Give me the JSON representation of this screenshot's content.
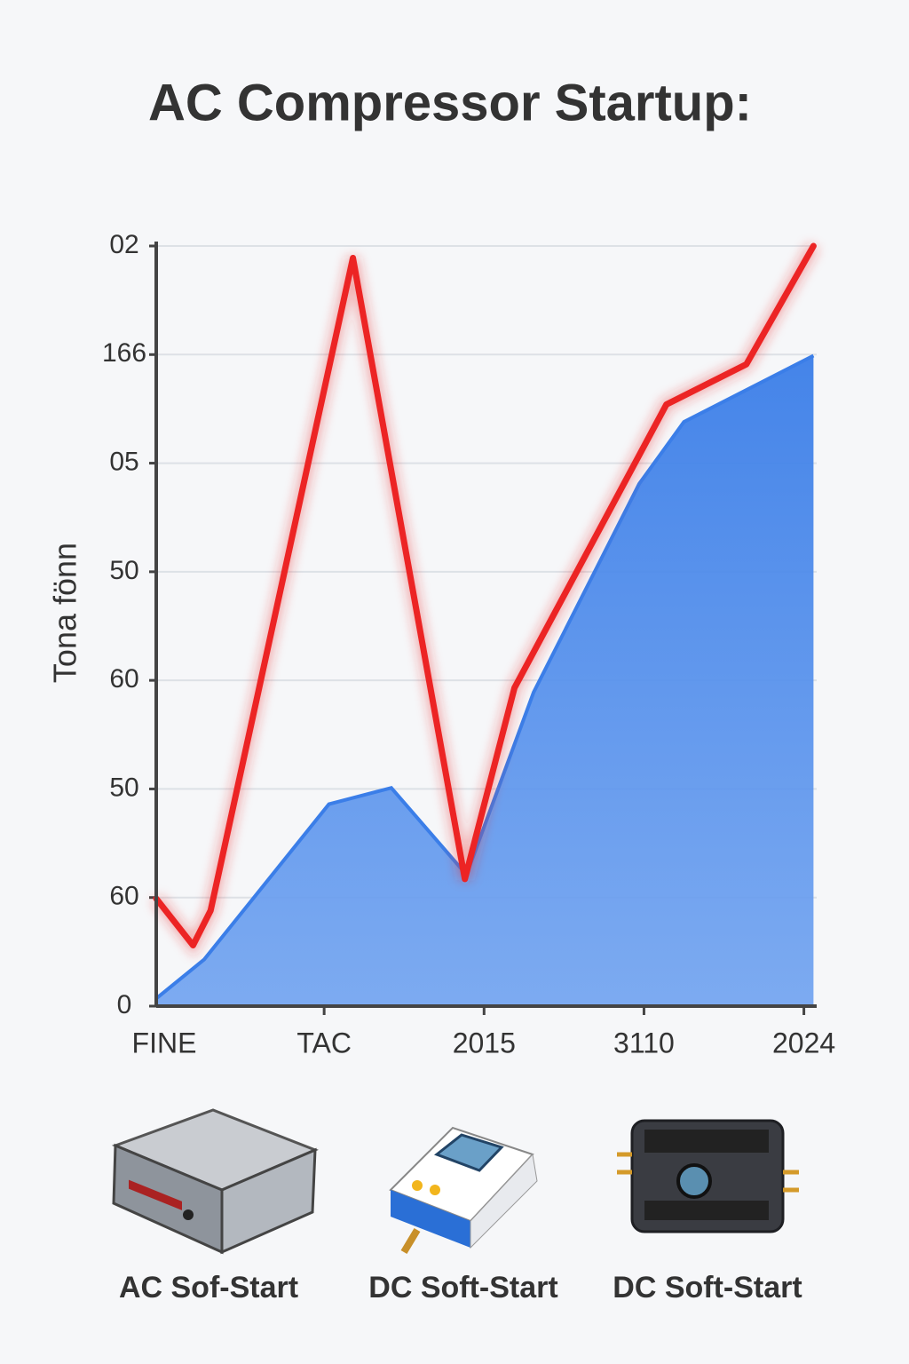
{
  "chart_data": {
    "type": "line",
    "title": "AC Compressor Startup:",
    "y_label": "Tona  fönn",
    "xlim": [
      -0.05,
      4.08
    ],
    "xticks": [
      {
        "value": 0,
        "label": "FINE"
      },
      {
        "value": 1,
        "label": "TAC"
      },
      {
        "value": 2,
        "label": "2015"
      },
      {
        "value": 3,
        "label": "3110"
      },
      {
        "value": 4,
        "label": "2024"
      }
    ],
    "ylim": [
      0,
      7
    ],
    "yticks": [
      0,
      {
        "value": 1,
        "label": "60"
      },
      {
        "value": 2,
        "label": "50"
      },
      {
        "value": 3,
        "label": "60"
      },
      {
        "value": 4,
        "label": "50"
      },
      {
        "value": 5,
        "label": "05"
      },
      {
        "value": 6,
        "label": "166"
      },
      {
        "value": 7,
        "label": "02"
      }
    ],
    "grid": true,
    "series": [
      {
        "name": "",
        "style": "area",
        "color": "#3b7ee8",
        "x": [
          -0.05,
          0.25,
          1.03,
          1.42,
          1.89,
          2.31,
          2.97,
          3.25,
          4.06
        ],
        "values": [
          0.07,
          0.43,
          1.86,
          2.01,
          1.21,
          2.89,
          4.81,
          5.38,
          5.99
        ]
      },
      {
        "name": "",
        "style": "line",
        "color": "#ec2424",
        "x": [
          -0.05,
          0.18,
          0.29,
          1.18,
          1.88,
          2.19,
          3.14,
          3.64,
          4.06
        ],
        "values": [
          0.99,
          0.56,
          0.88,
          6.89,
          1.17,
          2.93,
          5.54,
          5.91,
          7.0
        ]
      }
    ]
  },
  "products": [
    "AC Sof-Start",
    "DC Soft-Start",
    "DC Soft-Start"
  ]
}
